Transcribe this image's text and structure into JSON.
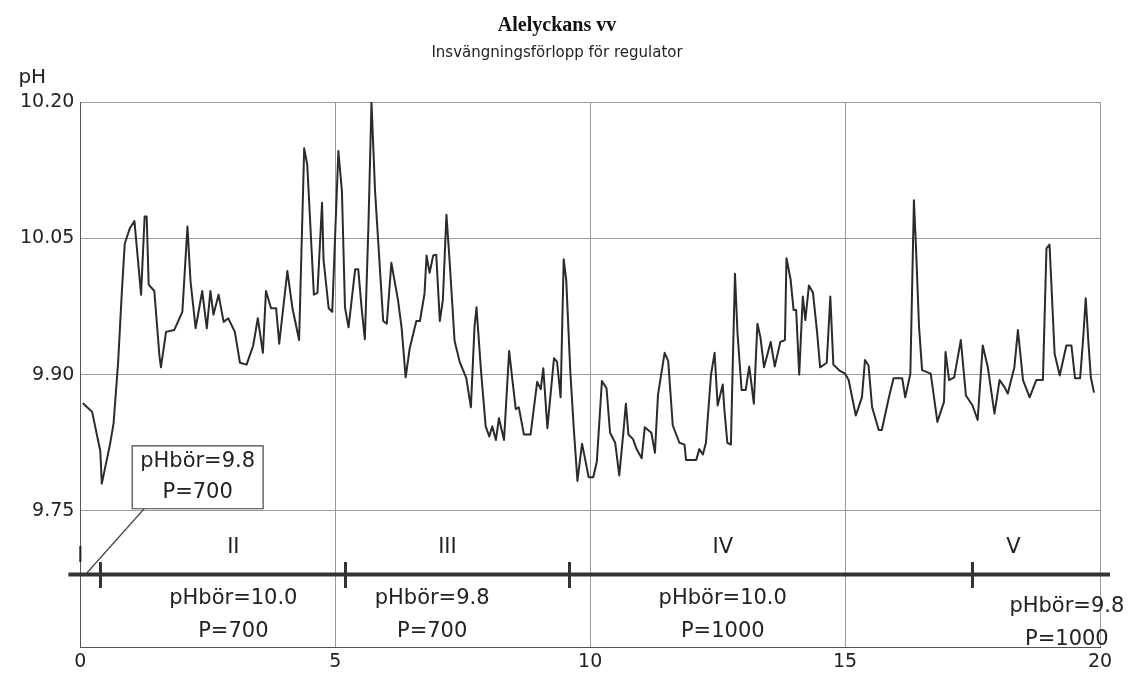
{
  "chart_data": {
    "type": "line",
    "title": "Alelyckans vv",
    "subtitle": "Insvängningsförlopp för regulator",
    "ylabel": "pH",
    "xlim": [
      0,
      20
    ],
    "xticks": [
      0,
      5,
      10,
      15,
      20
    ],
    "ylim": [
      9.6,
      10.2
    ],
    "yticks": [
      {
        "value": 9.75,
        "label": "9.75"
      },
      {
        "value": 9.9,
        "label": "9.90"
      },
      {
        "value": 10.05,
        "label": "10.05"
      },
      {
        "value": 10.2,
        "label": "10.20"
      }
    ],
    "grid": true,
    "legend": false,
    "marker": "none",
    "line_style": "solid",
    "series": [
      {
        "color": "#2b2b2b",
        "x": [
          0.06,
          0.23,
          0.39,
          0.42,
          0.58,
          0.65,
          0.74,
          0.81,
          0.87,
          0.97,
          1.06,
          1.16,
          1.19,
          1.26,
          1.3,
          1.34,
          1.45,
          1.55,
          1.58,
          1.68,
          1.84,
          2.0,
          2.1,
          2.16,
          2.26,
          2.39,
          2.48,
          2.55,
          2.61,
          2.71,
          2.81,
          2.9,
          3.03,
          3.13,
          3.26,
          3.39,
          3.48,
          3.58,
          3.64,
          3.74,
          3.84,
          3.9,
          4.06,
          4.16,
          4.29,
          4.39,
          4.45,
          4.58,
          4.65,
          4.74,
          4.77,
          4.87,
          4.94,
          5.06,
          5.13,
          5.19,
          5.26,
          5.39,
          5.45,
          5.52,
          5.58,
          5.65,
          5.71,
          5.78,
          5.88,
          5.94,
          6.01,
          6.1,
          6.23,
          6.3,
          6.38,
          6.46,
          6.59,
          6.66,
          6.75,
          6.79,
          6.85,
          6.92,
          6.98,
          7.05,
          7.11,
          7.18,
          7.24,
          7.34,
          7.44,
          7.57,
          7.66,
          7.73,
          7.77,
          7.86,
          7.95,
          8.02,
          8.08,
          8.15,
          8.21,
          8.31,
          8.41,
          8.47,
          8.54,
          8.6,
          8.7,
          8.83,
          8.96,
          9.03,
          9.08,
          9.16,
          9.29,
          9.35,
          9.42,
          9.48,
          9.53,
          9.61,
          9.68,
          9.75,
          9.84,
          9.97,
          10.06,
          10.13,
          10.23,
          10.32,
          10.39,
          10.49,
          10.57,
          10.65,
          10.7,
          10.75,
          10.84,
          10.91,
          11.01,
          11.07,
          11.2,
          11.27,
          11.33,
          11.46,
          11.53,
          11.62,
          11.75,
          11.85,
          11.88,
          12.08,
          12.14,
          12.21,
          12.27,
          12.37,
          12.44,
          12.5,
          12.6,
          12.63,
          12.69,
          12.76,
          12.79,
          12.84,
          12.89,
          12.97,
          13.05,
          13.12,
          13.21,
          13.28,
          13.34,
          13.41,
          13.54,
          13.62,
          13.73,
          13.82,
          13.85,
          13.93,
          13.99,
          14.04,
          14.1,
          14.17,
          14.22,
          14.29,
          14.37,
          14.45,
          14.51,
          14.64,
          14.71,
          14.77,
          14.9,
          15.0,
          15.07,
          15.21,
          15.33,
          15.39,
          15.46,
          15.53,
          15.66,
          15.72,
          15.86,
          15.95,
          16.12,
          16.18,
          16.28,
          16.35,
          16.39,
          16.45,
          16.51,
          16.68,
          16.81,
          16.94,
          16.97,
          17.04,
          17.14,
          17.27,
          17.37,
          17.5,
          17.6,
          17.7,
          17.8,
          17.93,
          18.03,
          18.13,
          18.19,
          18.32,
          18.39,
          18.49,
          18.62,
          18.75,
          18.88,
          18.95,
          19.01,
          19.11,
          19.21,
          19.34,
          19.44,
          19.51,
          19.61,
          19.67,
          19.72,
          19.77,
          19.82,
          19.88
        ],
        "values": [
          9.868,
          9.859,
          9.816,
          9.78,
          9.823,
          9.846,
          9.913,
          9.988,
          10.044,
          10.061,
          10.069,
          10.007,
          9.988,
          10.074,
          10.074,
          9.999,
          9.992,
          9.921,
          9.908,
          9.947,
          9.949,
          9.969,
          10.063,
          10.003,
          9.951,
          9.992,
          9.951,
          9.992,
          9.966,
          9.988,
          9.958,
          9.962,
          9.947,
          9.913,
          9.911,
          9.932,
          9.962,
          9.924,
          9.992,
          9.973,
          9.973,
          9.934,
          10.014,
          9.973,
          9.938,
          10.149,
          10.131,
          9.988,
          9.99,
          10.089,
          10.026,
          9.973,
          9.969,
          10.146,
          10.102,
          9.974,
          9.952,
          10.016,
          10.016,
          9.971,
          9.939,
          10.064,
          10.2,
          10.102,
          10.012,
          9.959,
          9.956,
          10.023,
          9.982,
          9.952,
          9.897,
          9.929,
          9.959,
          9.959,
          9.989,
          10.031,
          10.012,
          10.031,
          10.032,
          9.959,
          9.982,
          10.076,
          10.027,
          9.937,
          9.914,
          9.896,
          9.864,
          9.952,
          9.974,
          9.903,
          9.843,
          9.832,
          9.843,
          9.828,
          9.852,
          9.828,
          9.926,
          9.896,
          9.862,
          9.864,
          9.834,
          9.834,
          9.892,
          9.884,
          9.907,
          9.841,
          9.918,
          9.914,
          9.875,
          10.027,
          10.004,
          9.903,
          9.839,
          9.783,
          9.824,
          9.787,
          9.787,
          9.804,
          9.893,
          9.885,
          9.836,
          9.825,
          9.789,
          9.836,
          9.868,
          9.834,
          9.829,
          9.818,
          9.808,
          9.842,
          9.836,
          9.814,
          9.878,
          9.924,
          9.915,
          9.844,
          9.825,
          9.823,
          9.806,
          9.806,
          9.818,
          9.812,
          9.825,
          9.9,
          9.924,
          9.866,
          9.889,
          9.863,
          9.825,
          9.823,
          9.896,
          10.011,
          9.945,
          9.883,
          9.883,
          9.909,
          9.868,
          9.956,
          9.941,
          9.908,
          9.936,
          9.909,
          9.936,
          9.938,
          10.028,
          10.005,
          9.971,
          9.971,
          9.9,
          9.986,
          9.96,
          9.998,
          9.99,
          9.947,
          9.908,
          9.913,
          9.986,
          9.911,
          9.904,
          9.901,
          9.894,
          9.855,
          9.875,
          9.916,
          9.91,
          9.864,
          9.839,
          9.839,
          9.875,
          9.896,
          9.896,
          9.875,
          9.901,
          10.092,
          10.041,
          9.953,
          9.905,
          9.901,
          9.848,
          9.87,
          9.925,
          9.894,
          9.897,
          9.938,
          9.877,
          9.866,
          9.85,
          9.932,
          9.908,
          9.857,
          9.894,
          9.886,
          9.879,
          9.908,
          9.949,
          9.894,
          9.875,
          9.894,
          9.894,
          10.039,
          10.043,
          9.923,
          9.899,
          9.932,
          9.932,
          9.896,
          9.896,
          9.94,
          9.984,
          9.938,
          9.897,
          9.881
        ]
      }
    ],
    "ref_lines": [
      {
        "axis": "y",
        "value": 9.68,
        "color": "#333333"
      }
    ],
    "annotations": [
      "pHbör=9.8",
      {
        "text": "P=700",
        "x": 0.1,
        "y": 9.68
      },
      "I",
      "II",
      "III",
      "IV",
      "V",
      "pHbör=10.0",
      "P=700",
      "pHbör=9.8",
      "P=700",
      "pHbör=10.0",
      "P=1000",
      "pHbör=9.8",
      "P=1000"
    ]
  }
}
